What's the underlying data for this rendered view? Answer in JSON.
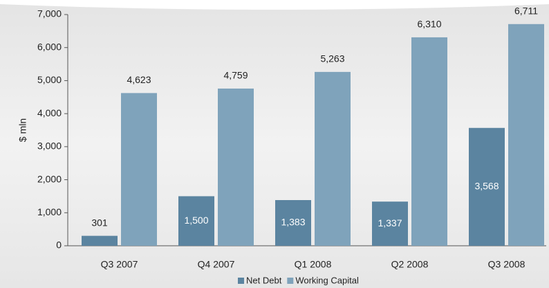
{
  "chart_data": {
    "type": "bar",
    "y_label": "$ mln",
    "categories": [
      "Q3 2007",
      "Q4 2007",
      "Q1 2008",
      "Q2 2008",
      "Q3 2008"
    ],
    "series": [
      {
        "name": "Net Debt",
        "color": "#5b84a0",
        "values": [
          301,
          1500,
          1383,
          1337,
          3568
        ],
        "value_labels": [
          "301",
          "1,500",
          "1,383",
          "1,337",
          "3,568"
        ]
      },
      {
        "name": "Working Capital",
        "color": "#7fa3bb",
        "values": [
          4623,
          4759,
          5263,
          6310,
          6711
        ],
        "value_labels": [
          "4,623",
          "4,759",
          "5,263",
          "6,310",
          "6,711"
        ]
      }
    ],
    "ylim": [
      0,
      7000
    ],
    "yticks": [
      0,
      {
        "value": 1000,
        "label": "1,000"
      },
      {
        "value": 2000,
        "label": "2,000"
      },
      {
        "value": 3000,
        "label": "3,000"
      },
      {
        "value": 4000,
        "label": "4,000"
      },
      {
        "value": 5000,
        "label": "5,000"
      },
      {
        "value": 6000,
        "label": "6,000"
      },
      {
        "value": 7000,
        "label": "7,000"
      }
    ],
    "legend": "bottom"
  }
}
